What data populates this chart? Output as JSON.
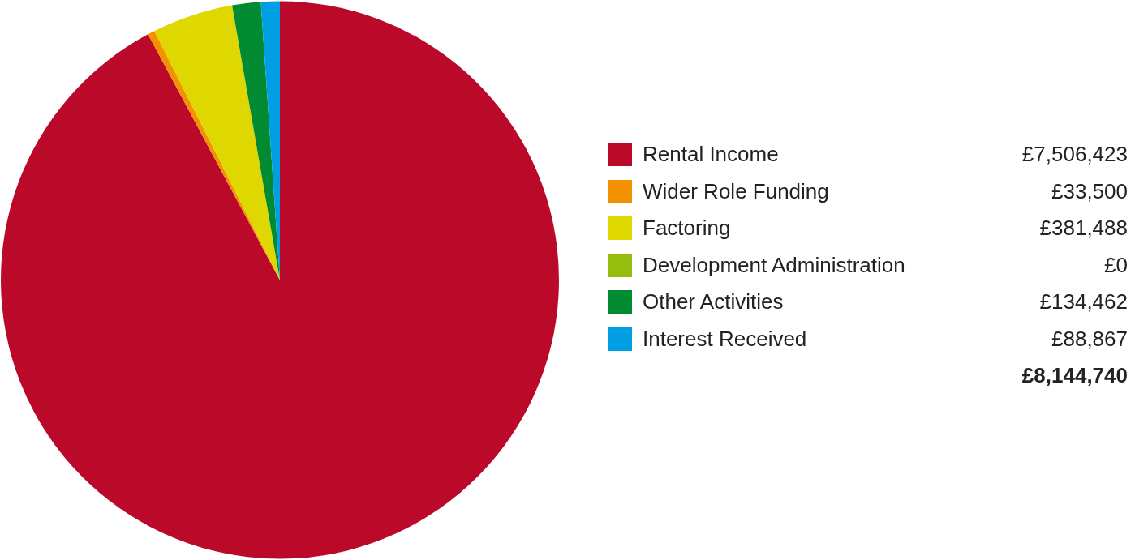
{
  "chart_data": {
    "type": "pie",
    "categories": [
      "Rental Income",
      "Wider Role Funding",
      "Factoring",
      "Development Administration",
      "Other Activities",
      "Interest Received"
    ],
    "values": [
      7506423,
      33500,
      381488,
      0,
      134462,
      88867
    ],
    "colors": [
      "#bb0a29",
      "#f39200",
      "#dfd800",
      "#95be0e",
      "#008a32",
      "#009fe3"
    ],
    "value_labels": [
      "£7,506,423",
      "£33,500",
      "£381,488",
      "£0",
      "£134,462",
      "£88,867"
    ],
    "totals": [
      "£8,144,740"
    ],
    "legend": "right"
  }
}
